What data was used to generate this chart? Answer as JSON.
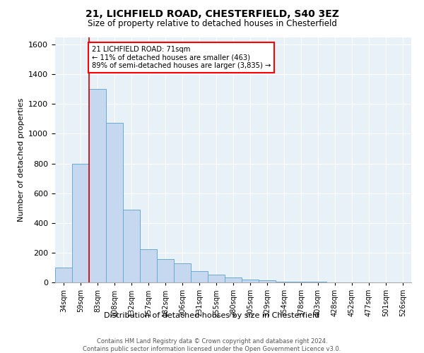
{
  "title_line1": "21, LICHFIELD ROAD, CHESTERFIELD, S40 3EZ",
  "title_line2": "Size of property relative to detached houses in Chesterfield",
  "xlabel": "Distribution of detached houses by size in Chesterfield",
  "ylabel": "Number of detached properties",
  "bin_labels": [
    "34sqm",
    "59sqm",
    "83sqm",
    "108sqm",
    "132sqm",
    "157sqm",
    "182sqm",
    "206sqm",
    "231sqm",
    "255sqm",
    "280sqm",
    "305sqm",
    "329sqm",
    "354sqm",
    "378sqm",
    "403sqm",
    "428sqm",
    "452sqm",
    "477sqm",
    "501sqm",
    "526sqm"
  ],
  "bar_heights": [
    100,
    800,
    1300,
    1075,
    490,
    225,
    155,
    130,
    75,
    50,
    35,
    20,
    15,
    5,
    5,
    3,
    2,
    1,
    1,
    1,
    1
  ],
  "bar_color": "#c5d8ef",
  "bar_edge_color": "#6aaad4",
  "vline_color": "#cc0000",
  "vline_position": 1.5,
  "annotation_text": "21 LICHFIELD ROAD: 71sqm\n← 11% of detached houses are smaller (463)\n89% of semi-detached houses are larger (3,835) →",
  "ylim": [
    0,
    1650
  ],
  "yticks": [
    0,
    200,
    400,
    600,
    800,
    1000,
    1200,
    1400,
    1600
  ],
  "footer_line1": "Contains HM Land Registry data © Crown copyright and database right 2024.",
  "footer_line2": "Contains public sector information licensed under the Open Government Licence v3.0.",
  "background_color": "#e8f0f8",
  "grid_color": "#ffffff"
}
